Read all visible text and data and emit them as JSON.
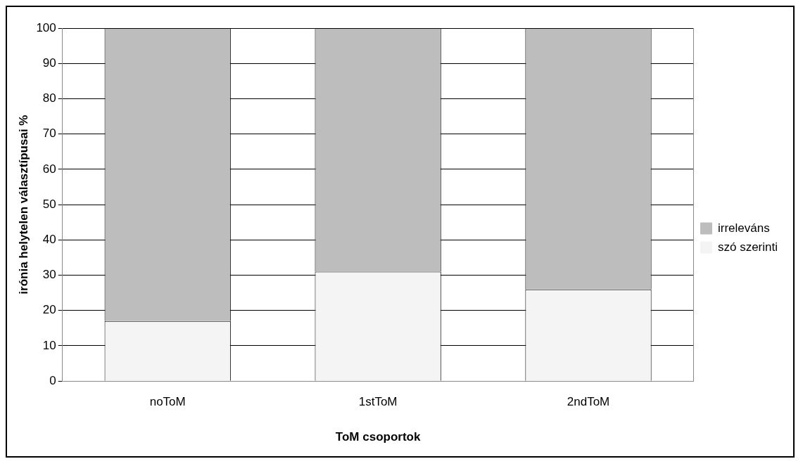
{
  "chart_data": {
    "type": "bar",
    "stacked": true,
    "xlabel": "ToM csoportok",
    "ylabel": "irónia helytelen választípusai %",
    "categories": [
      "noToM",
      "1stToM",
      "2ndToM"
    ],
    "series": [
      {
        "name": "szó szerinti",
        "color": "#f4f4f4",
        "values": [
          17,
          31,
          26
        ]
      },
      {
        "name": "irreleváns",
        "color": "#bdbdbd",
        "values": [
          83,
          69,
          74
        ]
      }
    ],
    "ylim": [
      0,
      100
    ],
    "yticks": [
      0,
      10,
      20,
      30,
      40,
      50,
      60,
      70,
      80,
      90,
      100
    ],
    "grid": "y",
    "legend": "right"
  }
}
